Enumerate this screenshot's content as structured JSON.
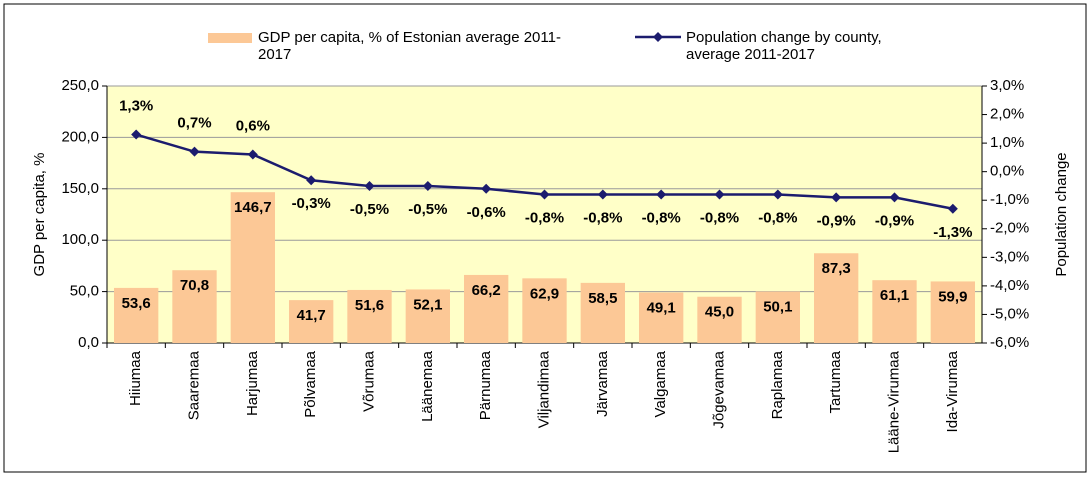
{
  "chart_data": {
    "type": "bar-line",
    "categories": [
      "Hiiumaa",
      "Saaremaa",
      "Harjumaa",
      "Põlvamaa",
      "Võrumaa",
      "Läänemaa",
      "Pärnumaa",
      "Viljandimaa",
      "Järvamaa",
      "Valgamaa",
      "Jõgevamaa",
      "Raplamaa",
      "Tartumaa",
      "Lääne-Virumaa",
      "Ida-Virumaa"
    ],
    "series": [
      {
        "name": "GDP per capita, % of Estonian average 2011-2017",
        "type": "bar",
        "color": "#fcc896",
        "values": [
          53.6,
          70.8,
          146.7,
          41.7,
          51.6,
          52.1,
          66.2,
          62.9,
          58.5,
          49.1,
          45.0,
          50.1,
          87.3,
          61.1,
          59.9
        ],
        "value_labels": [
          "53,6",
          "70,8",
          "146,7",
          "41,7",
          "51,6",
          "52,1",
          "66,2",
          "62,9",
          "58,5",
          "49,1",
          "45,0",
          "50,1",
          "87,3",
          "61,1",
          "59,9"
        ]
      },
      {
        "name": "Population change by county, average 2011-2017",
        "type": "line",
        "axis": "y2",
        "color": "#1c1c6e",
        "values": [
          1.3,
          0.7,
          0.6,
          -0.3,
          -0.5,
          -0.5,
          -0.6,
          -0.8,
          -0.8,
          -0.8,
          -0.8,
          -0.8,
          -0.9,
          -0.9,
          -1.3
        ],
        "value_labels": [
          "1,3%",
          "0,7%",
          "0,6%",
          "-0,3%",
          "-0,5%",
          "-0,5%",
          "-0,6%",
          "-0,8%",
          "-0,8%",
          "-0,8%",
          "-0,8%",
          "-0,8%",
          "-0,9%",
          "-0,9%",
          "-1,3%"
        ]
      }
    ],
    "y_label": "GDP per capita, %",
    "y2_label": "Population change",
    "ylim": [
      0,
      250
    ],
    "yticks": [
      {
        "value": 0,
        "label": "0,0"
      },
      {
        "value": 50,
        "label": "50,0"
      },
      {
        "value": 100,
        "label": "100,0"
      },
      {
        "value": 150,
        "label": "150,0"
      },
      {
        "value": 200,
        "label": "200,0"
      },
      {
        "value": 250,
        "label": "250,0"
      }
    ],
    "y2lim": [
      -6,
      3
    ],
    "y2ticks": [
      {
        "value": -6,
        "label": "-6,0%"
      },
      {
        "value": -5,
        "label": "-5,0%"
      },
      {
        "value": -4,
        "label": "-4,0%"
      },
      {
        "value": -3,
        "label": "-3,0%"
      },
      {
        "value": -2,
        "label": "-2,0%"
      },
      {
        "value": -1,
        "label": "-1,0%"
      },
      {
        "value": 0,
        "label": "0,0%"
      },
      {
        "value": 1,
        "label": "1,0%"
      },
      {
        "value": 2,
        "label": "2,0%"
      },
      {
        "value": 3,
        "label": "3,0%"
      }
    ],
    "grid": true,
    "background": "#ffffc8",
    "legend": "top"
  }
}
